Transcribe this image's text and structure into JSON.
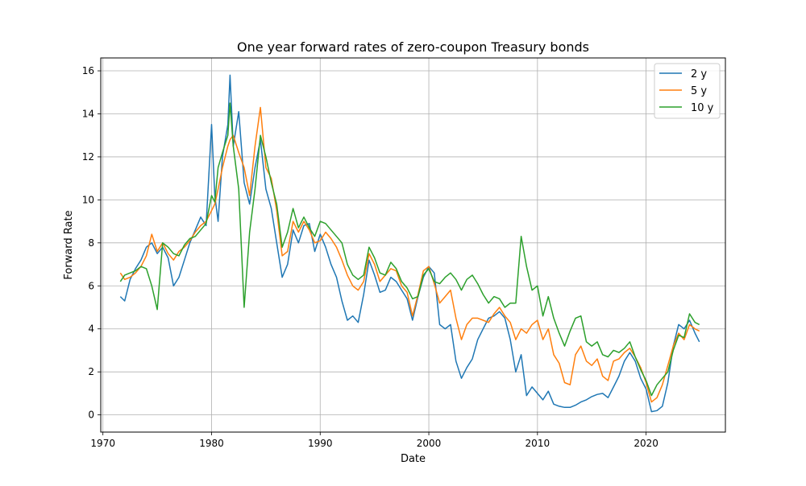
{
  "chart_data": {
    "type": "line",
    "title": "One year forward rates of zero-coupon Treasury bonds",
    "xlabel": "Date",
    "ylabel": "Forward Rate",
    "xlim": [
      1969.8,
      2027.3
    ],
    "ylim": [
      -0.8,
      16.6
    ],
    "xticks": [
      1970,
      1980,
      1990,
      2000,
      2010,
      2020
    ],
    "yticks": [
      0,
      2,
      4,
      6,
      8,
      10,
      12,
      14,
      16
    ],
    "grid": true,
    "legend_position": "upper right",
    "x": [
      1971.6,
      1972.0,
      1972.5,
      1973.0,
      1973.5,
      1974.0,
      1974.5,
      1975.0,
      1975.5,
      1976.0,
      1976.5,
      1977.0,
      1977.5,
      1978.0,
      1978.5,
      1979.0,
      1979.5,
      1980.0,
      1980.3,
      1980.6,
      1981.0,
      1981.5,
      1981.7,
      1982.0,
      1982.5,
      1983.0,
      1983.5,
      1984.0,
      1984.5,
      1985.0,
      1985.5,
      1986.0,
      1986.5,
      1987.0,
      1987.5,
      1988.0,
      1988.5,
      1989.0,
      1989.5,
      1990.0,
      1990.5,
      1991.0,
      1991.5,
      1992.0,
      1992.5,
      1993.0,
      1993.5,
      1994.0,
      1994.5,
      1995.0,
      1995.5,
      1996.0,
      1996.5,
      1997.0,
      1997.5,
      1998.0,
      1998.5,
      1999.0,
      1999.5,
      2000.0,
      2000.5,
      2001.0,
      2001.5,
      2002.0,
      2002.5,
      2003.0,
      2003.5,
      2004.0,
      2004.5,
      2005.0,
      2005.5,
      2006.0,
      2006.5,
      2007.0,
      2007.5,
      2008.0,
      2008.5,
      2009.0,
      2009.5,
      2010.0,
      2010.5,
      2011.0,
      2011.5,
      2012.0,
      2012.5,
      2013.0,
      2013.5,
      2014.0,
      2014.5,
      2015.0,
      2015.5,
      2016.0,
      2016.5,
      2017.0,
      2017.5,
      2018.0,
      2018.5,
      2019.0,
      2019.5,
      2020.0,
      2020.5,
      2021.0,
      2021.5,
      2022.0,
      2022.5,
      2023.0,
      2023.5,
      2024.0,
      2024.5,
      2024.9
    ],
    "series": [
      {
        "name": "2 y",
        "color": "#1f77b4",
        "values": [
          5.5,
          5.3,
          6.3,
          6.8,
          7.2,
          7.8,
          8.0,
          7.5,
          7.8,
          7.3,
          6.0,
          6.4,
          7.2,
          8.0,
          8.6,
          9.2,
          8.8,
          13.5,
          10.2,
          9.0,
          12.0,
          13.5,
          15.8,
          12.5,
          14.1,
          10.8,
          9.8,
          11.5,
          12.8,
          10.5,
          9.6,
          8.0,
          6.4,
          7.0,
          8.6,
          8.0,
          8.8,
          8.9,
          7.6,
          8.4,
          7.8,
          7.0,
          6.4,
          5.3,
          4.4,
          4.6,
          4.3,
          5.6,
          7.2,
          6.5,
          5.7,
          5.8,
          6.4,
          6.2,
          5.8,
          5.4,
          4.4,
          5.5,
          6.4,
          6.9,
          6.6,
          4.2,
          4.0,
          4.2,
          2.5,
          1.7,
          2.2,
          2.6,
          3.5,
          4.0,
          4.5,
          4.6,
          4.8,
          4.5,
          3.5,
          2.0,
          2.8,
          0.9,
          1.3,
          1.0,
          0.7,
          1.1,
          0.5,
          0.4,
          0.35,
          0.35,
          0.45,
          0.6,
          0.7,
          0.85,
          0.95,
          1.0,
          0.8,
          1.3,
          1.8,
          2.5,
          2.9,
          2.5,
          1.7,
          1.2,
          0.15,
          0.2,
          0.4,
          1.5,
          3.2,
          4.2,
          4.0,
          4.4,
          3.8,
          3.4
        ]
      },
      {
        "name": "5 y",
        "color": "#ff7f0e",
        "values": [
          6.6,
          6.3,
          6.4,
          6.6,
          6.9,
          7.4,
          8.4,
          7.6,
          8.0,
          7.5,
          7.2,
          7.6,
          7.8,
          8.1,
          8.5,
          8.8,
          9.0,
          9.5,
          9.8,
          10.5,
          11.5,
          12.5,
          12.8,
          13.0,
          12.2,
          11.5,
          10.2,
          12.5,
          14.3,
          11.5,
          11.0,
          9.5,
          7.4,
          7.6,
          9.0,
          8.5,
          9.0,
          8.6,
          8.0,
          8.1,
          8.5,
          8.2,
          7.8,
          7.2,
          6.5,
          6.0,
          5.8,
          6.2,
          7.5,
          7.0,
          6.2,
          6.5,
          6.8,
          6.7,
          6.0,
          5.7,
          4.6,
          5.6,
          6.7,
          6.9,
          6.1,
          5.2,
          5.5,
          5.8,
          4.5,
          3.5,
          4.2,
          4.5,
          4.5,
          4.4,
          4.3,
          4.7,
          5.0,
          4.6,
          4.3,
          3.5,
          4.0,
          3.8,
          4.2,
          4.4,
          3.5,
          4.0,
          2.8,
          2.4,
          1.5,
          1.4,
          2.8,
          3.2,
          2.5,
          2.3,
          2.6,
          1.8,
          1.6,
          2.5,
          2.6,
          2.9,
          3.1,
          2.7,
          2.2,
          1.5,
          0.6,
          0.8,
          1.4,
          2.3,
          3.2,
          3.8,
          3.5,
          4.2,
          4.0,
          3.9
        ]
      },
      {
        "name": "10 y",
        "color": "#2ca02c",
        "values": [
          6.2,
          6.5,
          6.6,
          6.7,
          6.9,
          6.8,
          6.0,
          4.9,
          8.0,
          7.8,
          7.5,
          7.4,
          7.9,
          8.2,
          8.3,
          8.6,
          8.9,
          10.2,
          9.9,
          11.5,
          12.2,
          13.0,
          14.5,
          12.5,
          10.5,
          5.0,
          8.5,
          10.5,
          13.0,
          12.0,
          10.8,
          9.8,
          7.8,
          8.5,
          9.6,
          8.7,
          9.2,
          8.7,
          8.3,
          9.0,
          8.9,
          8.6,
          8.3,
          8.0,
          7.0,
          6.5,
          6.3,
          6.5,
          7.8,
          7.3,
          6.6,
          6.5,
          7.1,
          6.8,
          6.2,
          5.9,
          5.4,
          5.5,
          6.5,
          6.8,
          6.2,
          6.1,
          6.4,
          6.6,
          6.3,
          5.8,
          6.3,
          6.5,
          6.1,
          5.6,
          5.2,
          5.5,
          5.4,
          5.0,
          5.2,
          5.2,
          8.3,
          6.9,
          5.8,
          6.0,
          4.6,
          5.5,
          4.5,
          3.8,
          3.2,
          3.9,
          4.5,
          4.6,
          3.4,
          3.2,
          3.4,
          2.8,
          2.7,
          3.0,
          2.9,
          3.1,
          3.4,
          2.7,
          2.1,
          1.6,
          0.9,
          1.4,
          1.7,
          2.0,
          3.0,
          3.7,
          3.6,
          4.7,
          4.3,
          4.2
        ]
      }
    ]
  }
}
